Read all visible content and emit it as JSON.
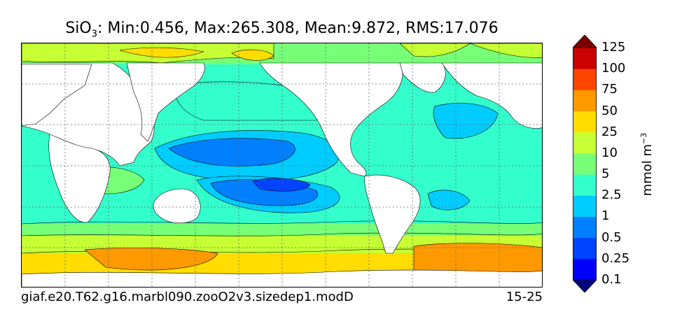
{
  "title": {
    "prefix": "SiO",
    "subscript": "3",
    "stats": ": Min:0.456, Max:265.308, Mean:9.872, RMS:17.076"
  },
  "footer": {
    "case_name": "giaf.e20.T62.g16.marbl090.zooO2v3.sizedep1.modD",
    "depth_range": "15-25"
  },
  "colorbar": {
    "units_base": "mmol m",
    "units_exp": "−3",
    "levels": [
      "0.1",
      "0.25",
      "0.5",
      "1",
      "2.5",
      "5",
      "10",
      "25",
      "50",
      "75",
      "100",
      "125"
    ],
    "colors": [
      "#00007f",
      "#0000ff",
      "#0044ff",
      "#0080ff",
      "#00ccff",
      "#33ffcc",
      "#77ff77",
      "#c6ff33",
      "#ffdd00",
      "#ff9900",
      "#ff4400",
      "#cc0000",
      "#7f0000"
    ]
  },
  "map": {
    "land_color": "#ffffff",
    "grid": true
  }
}
